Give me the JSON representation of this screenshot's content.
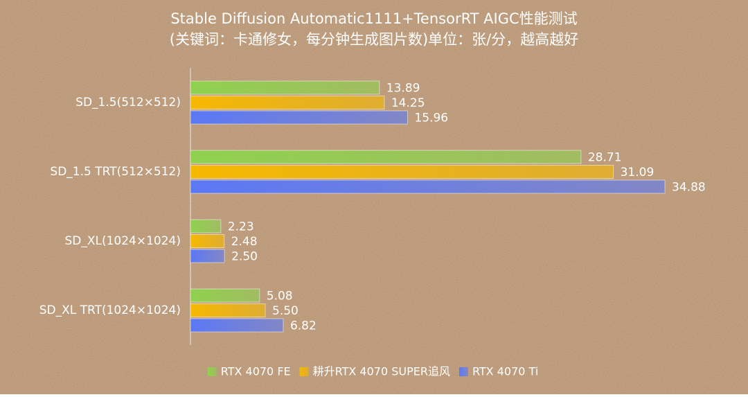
{
  "chart_data": {
    "type": "hbar",
    "title": "Stable Diffusion Automatic1111+TensorRT AIGC性能测试",
    "subtitle": "(关键词：卡通修女，每分钟生成图片数)单位：张/分，越高越好",
    "categories": [
      "SD_1.5(512×512)",
      "SD_1.5 TRT(512×512)",
      "SD_XL(1024×1024)",
      "SD_XL TRT(1024×1024)"
    ],
    "series": [
      {
        "name": "RTX 4070 FE",
        "color": "#8fd14f",
        "values": [
          13.89,
          28.71,
          2.23,
          5.08
        ],
        "value_labels": [
          "13.89",
          "28.71",
          "2.23",
          "5.08"
        ]
      },
      {
        "name": "耕升RTX 4070 SUPER追风",
        "color": "#f5b800",
        "values": [
          14.25,
          31.09,
          2.48,
          5.5
        ],
        "value_labels": [
          "14.25",
          "31.09",
          "2.48",
          "5.50"
        ]
      },
      {
        "name": "RTX 4070 Ti",
        "color": "#5b78f5",
        "values": [
          15.96,
          34.88,
          2.5,
          6.82
        ],
        "value_labels": [
          "15.96",
          "34.88",
          "2.50",
          "6.82"
        ]
      }
    ],
    "xlim": [
      0,
      40
    ],
    "legend": "bottom"
  }
}
